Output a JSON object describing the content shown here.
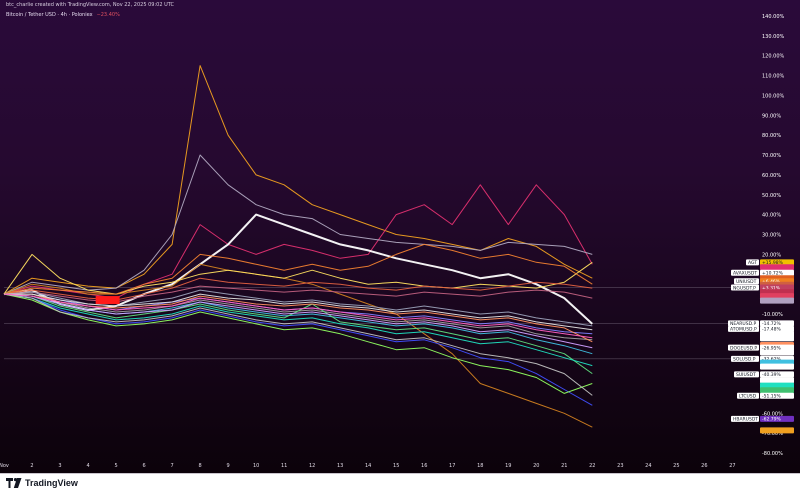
{
  "header": {
    "credit": "btc_charlie created with TradingView.com, Nov 22, 2025 09:02 UTC",
    "symbol": "Bitcoin / Tether USD · 4h · Poloniex",
    "change": "−23.40%"
  },
  "footer": {
    "brand": "TradingView"
  },
  "colors": {
    "background_top": "#2a0a3a",
    "background_bottom": "#0a0208",
    "highlight_series": "#ffffff",
    "red_marker": "#ff1a1a"
  },
  "chart_data": {
    "type": "line",
    "title": "",
    "xlabel": "",
    "ylabel": "",
    "y_unit": "%",
    "y_ticks": [
      "140.00%",
      "130.00%",
      "120.00%",
      "110.00%",
      "100.00%",
      "90.00%",
      "80.00%",
      "70.00%",
      "60.00%",
      "50.00%",
      "40.00%",
      "30.00%",
      "20.00%",
      "10.00%",
      "-10.00%",
      "-40.00%",
      "-60.00%",
      "-70.00%",
      "-80.00%"
    ],
    "y_tick_values": [
      140,
      130,
      120,
      110,
      100,
      90,
      80,
      70,
      60,
      50,
      40,
      30,
      20,
      10,
      -10,
      -40,
      -60,
      -70,
      -80
    ],
    "ylim": [
      -82,
      144
    ],
    "x_ticks": [
      "Nov",
      "2",
      "3",
      "4",
      "5",
      "6",
      "7",
      "8",
      "9",
      "10",
      "11",
      "12",
      "13",
      "14",
      "15",
      "16",
      "17",
      "18",
      "19",
      "20",
      "21",
      "22",
      "23",
      "24",
      "25",
      "26",
      "27"
    ],
    "x_tick_days": [
      1,
      2,
      3,
      4,
      5,
      6,
      7,
      8,
      9,
      10,
      11,
      12,
      13,
      14,
      15,
      16,
      17,
      18,
      19,
      20,
      21,
      22,
      23,
      24,
      25,
      26,
      27
    ],
    "xlim": [
      1,
      27.7
    ],
    "grid": false,
    "series_x": [
      1,
      2,
      3,
      4,
      5,
      6,
      7,
      8,
      9,
      10,
      11,
      12,
      13,
      14,
      15,
      16,
      17,
      18,
      19,
      20,
      21,
      22
    ],
    "series": [
      {
        "color": "#f0a020",
        "values": [
          0,
          8,
          6,
          4,
          3,
          10,
          25,
          115,
          80,
          60,
          55,
          45,
          40,
          35,
          30,
          28,
          25,
          22,
          28,
          24,
          15,
          8
        ]
      },
      {
        "color": "#e03070",
        "values": [
          0,
          4,
          2,
          0,
          -2,
          5,
          10,
          35,
          25,
          20,
          25,
          22,
          18,
          20,
          40,
          45,
          35,
          55,
          35,
          55,
          40,
          15
        ]
      },
      {
        "color": "#ffffff",
        "width": 2,
        "values": [
          0,
          2,
          -5,
          -8,
          -6,
          0,
          5,
          15,
          25,
          40,
          35,
          30,
          25,
          22,
          18,
          15,
          12,
          8,
          10,
          5,
          -2,
          -15
        ]
      },
      {
        "color": "#b0a8c0",
        "values": [
          0,
          6,
          4,
          2,
          3,
          12,
          30,
          70,
          55,
          45,
          40,
          38,
          30,
          28,
          26,
          25,
          24,
          22,
          26,
          25,
          24,
          20
        ]
      },
      {
        "color": "#d08020",
        "values": [
          0,
          5,
          3,
          0,
          0,
          2,
          4,
          15,
          12,
          10,
          8,
          5,
          0,
          -5,
          -10,
          -20,
          -30,
          -45,
          -50,
          -55,
          -60,
          -67
        ]
      },
      {
        "color": "#ffe060",
        "values": [
          0,
          20,
          8,
          2,
          0,
          4,
          6,
          10,
          12,
          10,
          8,
          12,
          8,
          5,
          6,
          4,
          3,
          5,
          4,
          3,
          6,
          16
        ]
      },
      {
        "color": "#f08030",
        "values": [
          0,
          3,
          2,
          1,
          0,
          5,
          8,
          20,
          18,
          15,
          12,
          15,
          12,
          14,
          20,
          25,
          22,
          18,
          20,
          16,
          14,
          5
        ]
      },
      {
        "color": "#e06040",
        "values": [
          0,
          2,
          0,
          -2,
          -3,
          0,
          3,
          8,
          6,
          5,
          4,
          6,
          5,
          3,
          2,
          4,
          3,
          2,
          4,
          6,
          5,
          3
        ]
      },
      {
        "color": "#c06080",
        "values": [
          0,
          1,
          -1,
          -3,
          -4,
          -1,
          1,
          4,
          3,
          2,
          1,
          2,
          1,
          0,
          -1,
          1,
          0,
          -1,
          1,
          2,
          1,
          -2
        ]
      },
      {
        "color": "#9aa0b8",
        "values": [
          0,
          1,
          -2,
          -5,
          -6,
          -4,
          -2,
          2,
          0,
          -2,
          -4,
          -3,
          -5,
          -6,
          -8,
          -6,
          -8,
          -10,
          -9,
          -12,
          -14,
          -16
        ]
      },
      {
        "color": "#8080ff",
        "values": [
          0,
          0,
          -3,
          -6,
          -8,
          -6,
          -4,
          -2,
          -4,
          -6,
          -8,
          -7,
          -9,
          -10,
          -12,
          -11,
          -13,
          -15,
          -14,
          -17,
          -19,
          -20
        ]
      },
      {
        "color": "#a0a0a0",
        "values": [
          0,
          0,
          -4,
          -7,
          -9,
          -8,
          -6,
          -3,
          -5,
          -7,
          -9,
          -8,
          -10,
          -12,
          -14,
          -13,
          -15,
          -17,
          -16,
          -20,
          -22,
          -23
        ]
      },
      {
        "color": "#40c0e0",
        "values": [
          0,
          -1,
          -5,
          -8,
          -10,
          -9,
          -7,
          -4,
          -7,
          -9,
          -11,
          -10,
          -12,
          -14,
          -16,
          -15,
          -17,
          -20,
          -19,
          -23,
          -26,
          -30
        ]
      },
      {
        "color": "#60e080",
        "values": [
          0,
          -1,
          -6,
          -9,
          -12,
          -10,
          -8,
          -5,
          -8,
          -10,
          -12,
          -5,
          -14,
          -16,
          -18,
          -17,
          -20,
          -23,
          -22,
          -26,
          -30,
          -40
        ]
      },
      {
        "color": "#ff9060",
        "values": [
          0,
          0,
          -4,
          -6,
          -7,
          -6,
          -5,
          -1,
          -3,
          -5,
          -6,
          -5,
          -7,
          -8,
          -10,
          -9,
          -11,
          -13,
          -12,
          -15,
          -17,
          -24
        ]
      },
      {
        "color": "#e0e0e0",
        "values": [
          0,
          0,
          -3,
          -5,
          -6,
          -5,
          -4,
          0,
          -2,
          -3,
          -5,
          -4,
          -6,
          -7,
          -9,
          -8,
          -10,
          -12,
          -11,
          -14,
          -16,
          -18
        ]
      },
      {
        "color": "#d0a0ff",
        "values": [
          0,
          -1,
          -5,
          -8,
          -10,
          -9,
          -8,
          -4,
          -6,
          -8,
          -10,
          -9,
          -11,
          -13,
          -15,
          -14,
          -16,
          -19,
          -18,
          -21,
          -24,
          -27
        ]
      },
      {
        "color": "#20e0c0",
        "values": [
          0,
          -2,
          -7,
          -10,
          -13,
          -12,
          -10,
          -6,
          -9,
          -11,
          -13,
          -12,
          -15,
          -17,
          -20,
          -19,
          -22,
          -25,
          -24,
          -28,
          -32,
          -36
        ]
      },
      {
        "color": "#4050ff",
        "values": [
          0,
          -2,
          -8,
          -12,
          -15,
          -14,
          -12,
          -8,
          -11,
          -14,
          -16,
          -15,
          -18,
          -21,
          -24,
          -23,
          -27,
          -32,
          -34,
          -40,
          -48,
          -56
        ]
      },
      {
        "color": "#90ff60",
        "values": [
          0,
          -3,
          -9,
          -13,
          -16,
          -15,
          -13,
          -9,
          -12,
          -15,
          -18,
          -17,
          -20,
          -24,
          -28,
          -27,
          -32,
          -36,
          -38,
          -42,
          -50,
          -45
        ]
      },
      {
        "color": "#c0c0c0",
        "values": [
          0,
          -2,
          -9,
          -12,
          -14,
          -13,
          -11,
          -7,
          -10,
          -13,
          -15,
          -14,
          -17,
          -20,
          -23,
          -22,
          -26,
          -30,
          -32,
          -35,
          -40,
          -51
        ]
      },
      {
        "color": "#ff60c0",
        "values": [
          0,
          -1,
          -4,
          -6,
          -8,
          -7,
          -6,
          -2,
          -4,
          -6,
          -8,
          -7,
          -9,
          -11,
          -13,
          -12,
          -14,
          -16,
          -15,
          -18,
          -20,
          -22
        ]
      }
    ],
    "price_tags": [
      {
        "label": "AGT",
        "value": 15.98,
        "display": "+15.98%",
        "color": "#f0c000"
      },
      {
        "label": "",
        "value": 13.5,
        "display": "",
        "color": "#e03070"
      },
      {
        "label": "AVAXUSDT",
        "value": 10.72,
        "display": "+10.72%",
        "color": "#ffffff"
      },
      {
        "label": "",
        "value": 8.0,
        "display": "",
        "color": "#e06020"
      },
      {
        "label": "UNIUSDT",
        "value": 6.46,
        "display": "+6.46%",
        "color": "#f08020"
      },
      {
        "label": "",
        "value": 4.7,
        "display": "",
        "color": "#d06040"
      },
      {
        "label": "NGUSDT.P",
        "value": 3.31,
        "display": "+3.31%",
        "color": "#c04060"
      },
      {
        "label": "",
        "value": 1.0,
        "display": "",
        "color": "#c03050"
      },
      {
        "label": "",
        "value": -1.0,
        "display": "",
        "color": "#e04060"
      },
      {
        "label": "",
        "value": -3.3,
        "display": "",
        "color": "#b0a0c0"
      },
      {
        "label": "NEARUSD.P",
        "value": -14.72,
        "display": "-14.72%",
        "color": "#ffffff"
      },
      {
        "label": "ATOMUSD.P",
        "value": -17.48,
        "display": "-17.48%",
        "color": "#ffffff"
      },
      {
        "label": "",
        "value": -20.0,
        "display": "",
        "color": "#ffffff"
      },
      {
        "label": "",
        "value": -22.3,
        "display": "",
        "color": "#ffffff"
      },
      {
        "label": "",
        "value": -25.6,
        "display": "",
        "color": "#ff9060"
      },
      {
        "label": "DOGEUSD.P",
        "value": -26.95,
        "display": "-26.95%",
        "color": "#ffffff"
      },
      {
        "label": "",
        "value": -29.4,
        "display": "",
        "color": "#ffffff"
      },
      {
        "label": "SOLUSD.P",
        "value": -32.62,
        "display": "-32.62%",
        "color": "#ffffff"
      },
      {
        "label": "",
        "value": -34.5,
        "display": "",
        "color": "#40c0e0"
      },
      {
        "label": "",
        "value": -36.5,
        "display": "",
        "color": "#ffffff"
      },
      {
        "label": "SUIUSDT",
        "value": -40.39,
        "display": "-40.39%",
        "color": "#ffffff"
      },
      {
        "label": "",
        "value": -43.3,
        "display": "",
        "color": "#ffffff"
      },
      {
        "label": "",
        "value": -46.1,
        "display": "",
        "color": "#20e0c0"
      },
      {
        "label": "",
        "value": -48.4,
        "display": "",
        "color": "#40c070"
      },
      {
        "label": "LTCUSD",
        "value": -51.15,
        "display": "-51.15%",
        "color": "#ffffff"
      },
      {
        "label": "HBARUSDT",
        "value": -62.79,
        "display": "-62.79%",
        "color": "#7030c0"
      },
      {
        "label": "",
        "value": -68.6,
        "display": "",
        "color": "#f0a020"
      }
    ],
    "reference_lines": [
      3.3,
      -14.7,
      -32.6
    ],
    "annotation": {
      "type": "red-box",
      "x": 4.7,
      "y": -3
    }
  }
}
